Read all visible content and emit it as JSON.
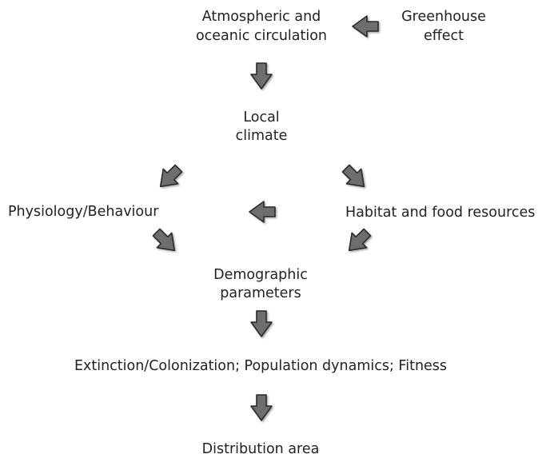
{
  "nodes": [
    {
      "lines": [
        "Atmospheric and",
        "oceanic circulation"
      ]
    },
    {
      "lines": [
        "Greenhouse",
        "effect"
      ]
    },
    {
      "lines": [
        "Local",
        "climate"
      ]
    },
    {
      "lines": [
        "Physiology/Behaviour"
      ]
    },
    {
      "lines": [
        "Habitat and food resources"
      ]
    },
    {
      "lines": [
        "Demographic",
        "parameters"
      ]
    },
    {
      "lines": [
        "Extinction/Colonization; Population dynamics; Fitness"
      ]
    },
    {
      "lines": [
        "Distribution area"
      ]
    }
  ]
}
